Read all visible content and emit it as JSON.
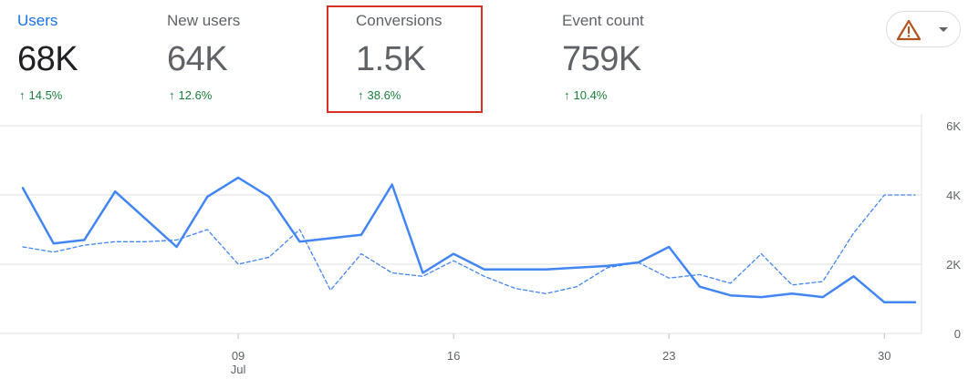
{
  "metrics": [
    {
      "label": "Users",
      "value": "68K",
      "change": "14.5%",
      "active": true
    },
    {
      "label": "New users",
      "value": "64K",
      "change": "12.6%",
      "active": false
    },
    {
      "label": "Conversions",
      "value": "1.5K",
      "change": "38.6%",
      "active": false
    },
    {
      "label": "Event count",
      "value": "759K",
      "change": "10.4%",
      "active": false
    }
  ],
  "alert_button": {
    "icon": "warning-icon",
    "caret": "chevron-down-icon",
    "color": "#b3541e"
  },
  "colors": {
    "accent": "#1a73e8",
    "positive": "#188038",
    "highlight": "#d93025",
    "series": "#4285f4"
  },
  "chart_data": {
    "type": "line",
    "x": [
      "Jul 2",
      "Jul 3",
      "Jul 4",
      "Jul 5",
      "Jul 6",
      "Jul 7",
      "Jul 8",
      "Jul 9",
      "Jul 10",
      "Jul 11",
      "Jul 12",
      "Jul 13",
      "Jul 14",
      "Jul 15",
      "Jul 16",
      "Jul 17",
      "Jul 18",
      "Jul 19",
      "Jul 20",
      "Jul 21",
      "Jul 22",
      "Jul 23",
      "Jul 24",
      "Jul 25",
      "Jul 26",
      "Jul 27",
      "Jul 28",
      "Jul 29",
      "Jul 30",
      "Jul 31"
    ],
    "xticks": [
      {
        "x": "Jul 9",
        "label": "09",
        "sublabel": "Jul"
      },
      {
        "x": "Jul 16",
        "label": "16",
        "sublabel": ""
      },
      {
        "x": "Jul 23",
        "label": "23",
        "sublabel": ""
      },
      {
        "x": "Jul 30",
        "label": "30",
        "sublabel": ""
      }
    ],
    "yticks": [
      {
        "v": 0,
        "label": "0"
      },
      {
        "v": 2000,
        "label": "2K"
      },
      {
        "v": 4000,
        "label": "4K"
      },
      {
        "v": 6000,
        "label": "6K"
      }
    ],
    "ylim": [
      0,
      6000
    ],
    "grid": true,
    "series": [
      {
        "style": "solid",
        "values": [
          4200,
          2600,
          2700,
          4100,
          3300,
          2500,
          3950,
          4500,
          3950,
          2650,
          2750,
          2850,
          4300,
          1750,
          2300,
          1850,
          1850,
          1850,
          1900,
          1950,
          2050,
          2500,
          1350,
          1100,
          1050,
          1150,
          1050,
          1650,
          900,
          900
        ]
      },
      {
        "style": "dashed",
        "values": [
          2500,
          2350,
          2550,
          2650,
          2650,
          2700,
          3000,
          2000,
          2200,
          3000,
          1250,
          2300,
          1750,
          1650,
          2100,
          1650,
          1300,
          1150,
          1350,
          1900,
          2050,
          1600,
          1700,
          1450,
          2300,
          1400,
          1500,
          2900,
          4000,
          4000
        ]
      }
    ]
  }
}
